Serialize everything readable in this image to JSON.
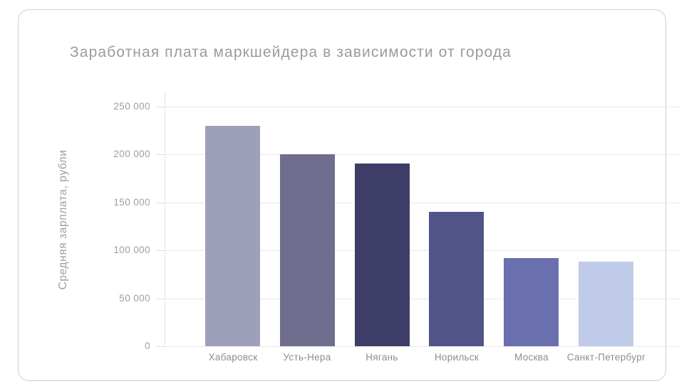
{
  "chart_data": {
    "type": "bar",
    "title": "Заработная плата маркшейдера в зависимости от города",
    "ylabel": "Средняя зарплата, рубли",
    "xlabel": "",
    "categories": [
      "Хабаровск",
      "Усть-Нера",
      "Нягань",
      "Норильск",
      "Москва",
      "Санкт-Петербург"
    ],
    "values": [
      230000,
      200000,
      191000,
      140000,
      92000,
      88000
    ],
    "bar_colors": [
      "#9ea0bb",
      "#706e8e",
      "#3e3d68",
      "#515489",
      "#6a6fae",
      "#bfcbe8"
    ],
    "ylim": [
      0,
      250000
    ],
    "y_ticks": [
      {
        "value": 0,
        "label": "0"
      },
      {
        "value": 50000,
        "label": "50 000"
      },
      {
        "value": 100000,
        "label": "100 000"
      },
      {
        "value": 150000,
        "label": "150 000"
      },
      {
        "value": 200000,
        "label": "200 000"
      },
      {
        "value": 250000,
        "label": "250 000"
      }
    ],
    "grid": true,
    "legend": false
  },
  "colors": {
    "card_border": "#cfcfd4",
    "title_text": "#9b9b9d",
    "axis_text": "#9e9ea2",
    "gridline": "#eaeaec",
    "background": "#ffffff"
  }
}
